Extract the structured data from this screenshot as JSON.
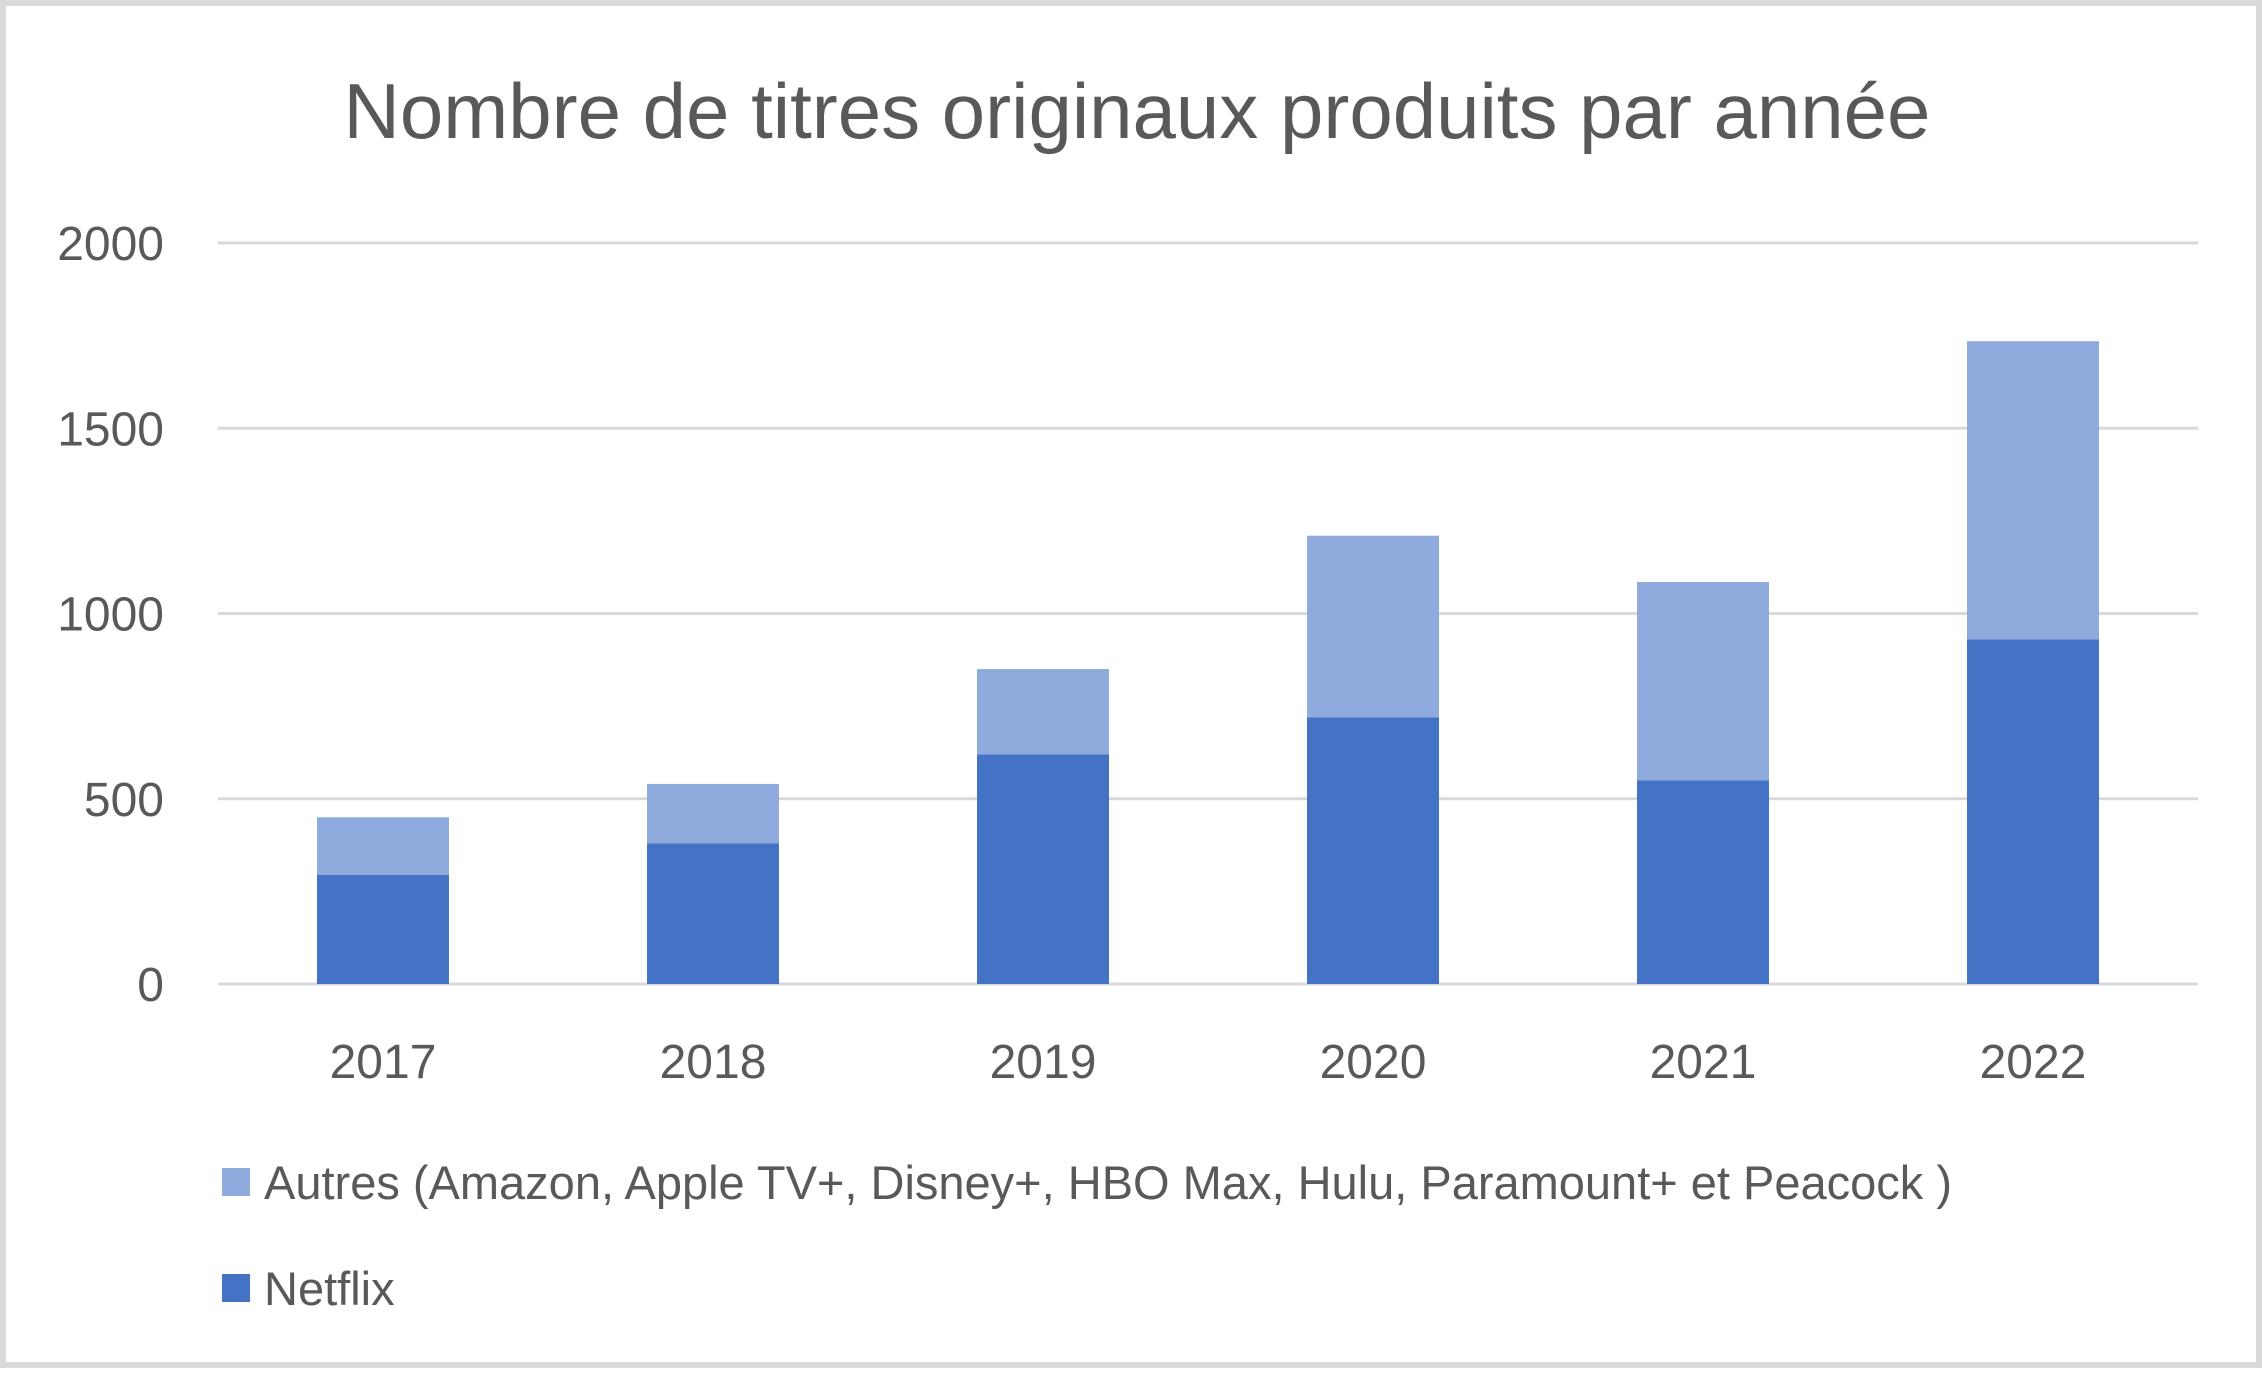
{
  "chart_data": {
    "type": "bar",
    "stacked": true,
    "title": "Nombre de titres originaux produits par année",
    "xlabel": "",
    "ylabel": "",
    "categories": [
      "2017",
      "2018",
      "2019",
      "2020",
      "2021",
      "2022"
    ],
    "series": [
      {
        "name": "Netflix",
        "color": "#4472c4",
        "values": [
          295,
          380,
          620,
          720,
          550,
          930
        ]
      },
      {
        "name": "Autres (Amazon, Apple TV+, Disney+, HBO Max, Hulu, Paramount+ et Peacock )",
        "color": "#8faadc",
        "values": [
          155,
          160,
          230,
          490,
          535,
          805
        ]
      }
    ],
    "ylim": [
      0,
      2000
    ],
    "yticks": [
      "0",
      "500",
      "1000",
      "1500",
      "2000"
    ],
    "grid": true,
    "legend_position": "bottom-left",
    "legend_order": [
      1,
      0
    ]
  }
}
